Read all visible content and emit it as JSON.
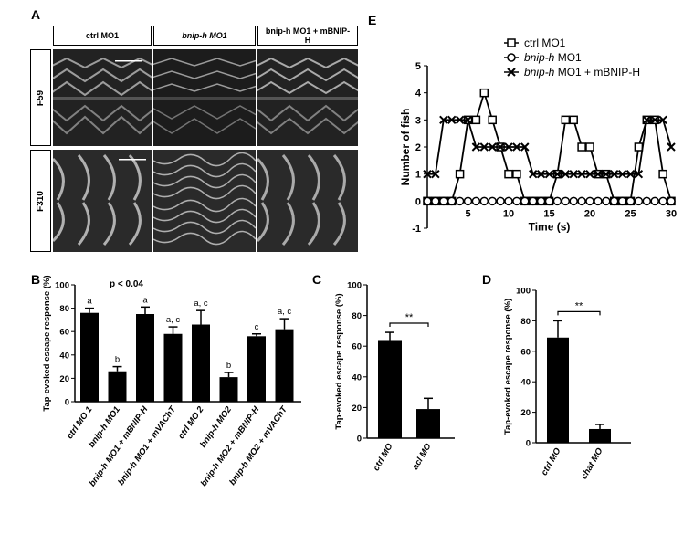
{
  "panels": {
    "A": {
      "label": "A",
      "columns": [
        "ctrl MO1",
        "bnip-h MO1",
        "bnip-h MO1 + mBNIP-H"
      ],
      "rows": [
        "F59",
        "F310"
      ]
    },
    "B": {
      "label": "B",
      "annotation": "p < 0.04"
    },
    "C": {
      "label": "C"
    },
    "D": {
      "label": "D"
    },
    "E": {
      "label": "E"
    }
  },
  "chart_data": [
    {
      "id": "E",
      "type": "line",
      "xlabel": "Time (s)",
      "ylabel": "Number of fish",
      "xlim": [
        0,
        30
      ],
      "ylim": [
        -1,
        5
      ],
      "xticks": [
        5,
        10,
        15,
        20,
        25,
        30
      ],
      "yticks": [
        -1,
        0,
        1,
        2,
        3,
        4,
        5
      ],
      "legend_position": "top-right",
      "series": [
        {
          "name": "ctrl MO1",
          "marker": "square",
          "x": [
            0,
            1,
            2,
            3,
            4,
            5,
            6,
            7,
            8,
            9,
            10,
            11,
            12,
            13,
            14,
            15,
            16,
            17,
            18,
            19,
            20,
            21,
            22,
            23,
            24,
            25,
            26,
            27,
            28,
            29,
            30
          ],
          "y": [
            0,
            0,
            0,
            0,
            1,
            3,
            3,
            4,
            3,
            2,
            1,
            1,
            0,
            0,
            0,
            0,
            1,
            3,
            3,
            2,
            2,
            1,
            1,
            0,
            0,
            0,
            2,
            3,
            3,
            1,
            0
          ]
        },
        {
          "name": "bnip-h MO1",
          "marker": "circle",
          "x": [
            0,
            1,
            2,
            3,
            4,
            5,
            6,
            7,
            8,
            9,
            10,
            11,
            12,
            13,
            14,
            15,
            16,
            17,
            18,
            19,
            20,
            21,
            22,
            23,
            24,
            25,
            26,
            27,
            28,
            29,
            30
          ],
          "y": [
            0,
            0,
            0,
            0,
            0,
            0,
            0,
            0,
            0,
            0,
            0,
            0,
            0,
            0,
            0,
            0,
            0,
            0,
            0,
            0,
            0,
            0,
            0,
            0,
            0,
            0,
            0,
            0,
            0,
            0,
            0
          ]
        },
        {
          "name": "bnip-h MO1 + mBNIP-H",
          "marker": "cross",
          "x": [
            0,
            1,
            2,
            3,
            4,
            5,
            6,
            7,
            8,
            9,
            10,
            11,
            12,
            13,
            14,
            15,
            16,
            17,
            18,
            19,
            20,
            21,
            22,
            23,
            24,
            25,
            26,
            27,
            28,
            29,
            30
          ],
          "y": [
            1,
            1,
            3,
            3,
            3,
            3,
            2,
            2,
            2,
            2,
            2,
            2,
            2,
            1,
            1,
            1,
            1,
            1,
            1,
            1,
            1,
            1,
            1,
            1,
            1,
            1,
            1,
            3,
            3,
            3,
            2
          ]
        }
      ]
    },
    {
      "id": "B",
      "type": "bar",
      "ylabel": "Tap-evoked escape response (%)",
      "ylim": [
        0,
        100
      ],
      "yticks": [
        0,
        20,
        40,
        60,
        80,
        100
      ],
      "categories": [
        "ctrl MO 1",
        "bnip-h MO1",
        "bnip-h MO1 + mBNIP-H",
        "bnip-h MO1 + mVAChT",
        "ctrl MO 2",
        "bnip-h MO2",
        "bnip-h MO2 + mBNIP-H",
        "bnip-h MO2 + mVAChT"
      ],
      "values": [
        76,
        26,
        75,
        58,
        66,
        21,
        56,
        62
      ],
      "errors": [
        4,
        4,
        6,
        6,
        12,
        4,
        2,
        9
      ],
      "significance": [
        "a",
        "b",
        "a",
        "a, c",
        "a, c",
        "b",
        "c",
        "a, c"
      ]
    },
    {
      "id": "C",
      "type": "bar",
      "ylabel": "Tap-evoked escape response (%)",
      "ylim": [
        0,
        100
      ],
      "yticks": [
        0,
        20,
        40,
        60,
        80,
        100
      ],
      "categories": [
        "ctrl MO",
        "acl MO"
      ],
      "values": [
        64,
        19
      ],
      "errors": [
        5,
        7
      ],
      "significance_marker": "**"
    },
    {
      "id": "D",
      "type": "bar",
      "ylabel": "Tap-evoked escape response (%)",
      "ylim": [
        0,
        100
      ],
      "yticks": [
        0,
        20,
        40,
        60,
        80,
        100
      ],
      "categories": [
        "ctrl MO",
        "chat MO"
      ],
      "values": [
        69,
        9
      ],
      "errors": [
        11,
        3
      ],
      "significance_marker": "**"
    }
  ]
}
